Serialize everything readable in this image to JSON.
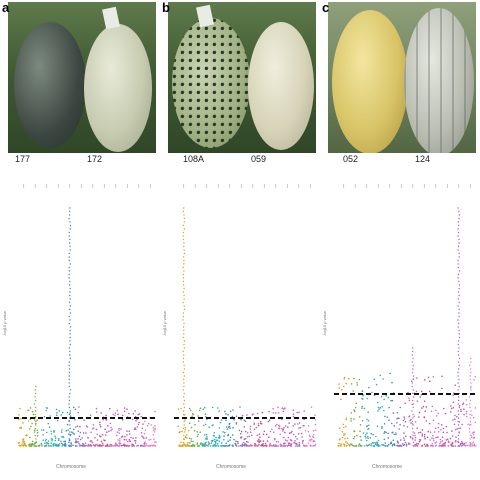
{
  "panels": [
    {
      "letter": "a",
      "labels": [
        "177",
        "172"
      ],
      "xlabel": "Chromosome",
      "ylabel": "-log10 p value"
    },
    {
      "letter": "b",
      "labels": [
        "108A",
        "059"
      ],
      "xlabel": "Chromosome",
      "ylabel": "-log10 p value"
    },
    {
      "letter": "c",
      "labels": [
        "052",
        "124"
      ],
      "xlabel": "Chromosome",
      "ylabel": "-log10 p value"
    }
  ],
  "chart_data": [
    {
      "type": "scatter",
      "xlabel": "Chromosome",
      "ylabel": "-log10 p value",
      "threshold": 2.8,
      "ylim": [
        0,
        25
      ],
      "chromosomes": 12,
      "peaks": [
        {
          "chromosome": 5,
          "value": 24
        },
        {
          "chromosome": 2,
          "value": 6
        }
      ],
      "colors": [
        "#e0a020",
        "#6cae3c",
        "#3cae9c",
        "#2ca8c8",
        "#3c8cc8",
        "#8c6cc8",
        "#c86ca8",
        "#c84c8c",
        "#d070c0",
        "#c850b0",
        "#b060c8",
        "#e080d0"
      ]
    },
    {
      "type": "scatter",
      "xlabel": "Chromosome",
      "ylabel": "-log10 p value",
      "threshold": 2.8,
      "ylim": [
        0,
        25
      ],
      "chromosomes": 12,
      "peaks": [
        {
          "chromosome": 1,
          "value": 24
        }
      ],
      "colors": [
        "#e0a020",
        "#6cae3c",
        "#3cae9c",
        "#2ca8c8",
        "#3c8cc8",
        "#8c6cc8",
        "#c86ca8",
        "#c84c8c",
        "#d070c0",
        "#c850b0",
        "#b060c8",
        "#e080d0"
      ]
    },
    {
      "type": "scatter",
      "xlabel": "Chromosome",
      "ylabel": "-log10 p value",
      "threshold": 5.2,
      "ylim": [
        0,
        25
      ],
      "chromosomes": 12,
      "peaks": [
        {
          "chromosome": 11,
          "value": 24
        },
        {
          "chromosome": 7,
          "value": 10
        },
        {
          "chromosome": 12,
          "value": 9
        }
      ],
      "colors": [
        "#e0a020",
        "#6cae3c",
        "#3cae9c",
        "#2ca8c8",
        "#3c8cc8",
        "#8c6cc8",
        "#c86ca8",
        "#c84c8c",
        "#d070c0",
        "#c850b0",
        "#b060c8",
        "#e080d0"
      ]
    }
  ]
}
